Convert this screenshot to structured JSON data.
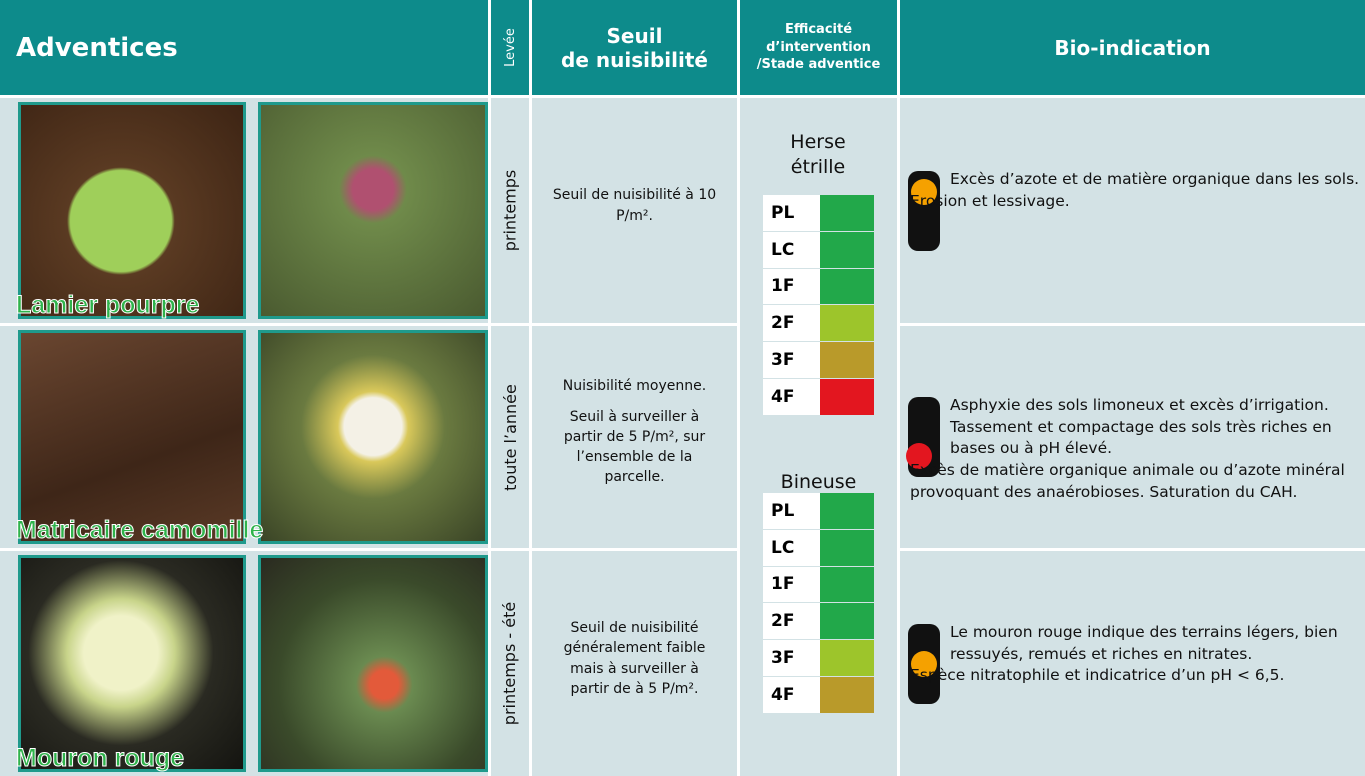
{
  "header": {
    "adventices": "Adventices",
    "levee": "Levée",
    "seuil": [
      "Seuil",
      "de nuisibilité"
    ],
    "efficacite": [
      "Efficacité",
      "d’intervention",
      "/Stade adventice"
    ],
    "bio": "Bio-indication"
  },
  "rows": [
    {
      "name": "Lamier pourpre",
      "levee": "printemps",
      "seuil": [
        "Seuil de nuisibilité à 10 P/m²."
      ],
      "light": {
        "color": "#f5a100",
        "position": "top"
      },
      "bio": [
        "Excès d’azote et de matière organique dans les sols.",
        "Erosion et lessivage."
      ]
    },
    {
      "name": "Matricaire camomille",
      "levee": "toute l’année",
      "seuil": [
        "Nuisibilité moyenne.",
        "Seuil à surveiller à partir de 5 P/m², sur l’ensemble de la parcelle."
      ],
      "light": {
        "color": "#e3161f",
        "position": "bottom"
      },
      "bio": [
        "Asphyxie des sols limoneux et excès d’irrigation. Tassement et compactage des sols très riches en bases ou à pH élevé.",
        "Excès de matière organique animale ou d’azote minéral provoquant des anaérobioses. Saturation du CAH."
      ]
    },
    {
      "name": "Mouron rouge",
      "levee": "printemps - été",
      "seuil": [
        "Seuil de nuisibilité généralement faible mais à surveiller à partir de à 5 P/m²."
      ],
      "light": {
        "color": "#f5a100",
        "position": "middle"
      },
      "bio": [
        "Le mouron rouge indique des terrains légers, bien ressuyés, remués et riches en nitrates.",
        "Espèce nitratophile et indicatrice d’un pH < 6,5."
      ]
    }
  ],
  "efficacite": [
    {
      "tool": "Herse étrille",
      "stages": [
        {
          "label": "PL",
          "color": "#22a84a"
        },
        {
          "label": "LC",
          "color": "#22a84a"
        },
        {
          "label": "1F",
          "color": "#22a84a"
        },
        {
          "label": "2F",
          "color": "#9dc52b"
        },
        {
          "label": "3F",
          "color": "#b99a2a"
        },
        {
          "label": "4F",
          "color": "#e3161f"
        }
      ]
    },
    {
      "tool": "Bineuse",
      "stages": [
        {
          "label": "PL",
          "color": "#22a84a"
        },
        {
          "label": "LC",
          "color": "#22a84a"
        },
        {
          "label": "1F",
          "color": "#22a84a"
        },
        {
          "label": "2F",
          "color": "#22a84a"
        },
        {
          "label": "3F",
          "color": "#9dc52b"
        },
        {
          "label": "4F",
          "color": "#b99a2a"
        }
      ]
    }
  ]
}
